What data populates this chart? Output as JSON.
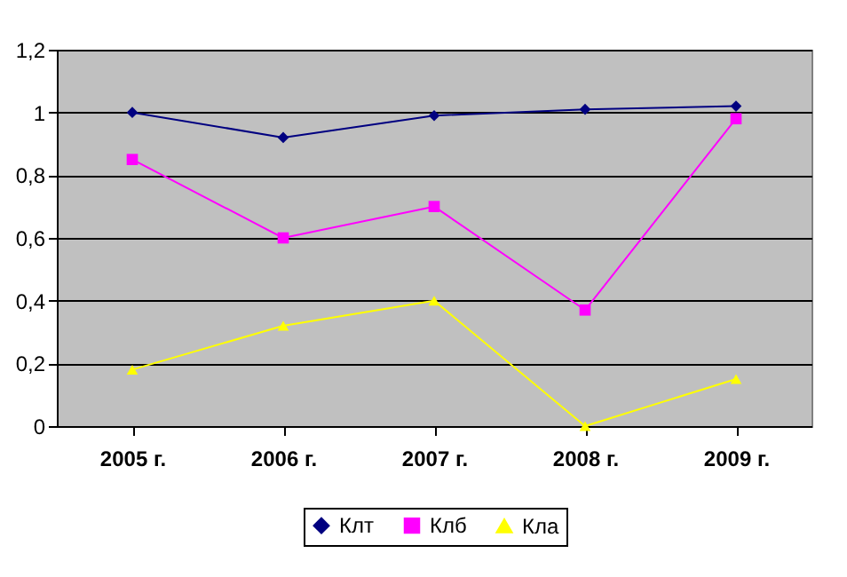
{
  "chart_data": {
    "type": "line",
    "categories": [
      "2005 г.",
      "2006 г.",
      "2007 г.",
      "2008 г.",
      "2009 г."
    ],
    "series": [
      {
        "name": "Клт",
        "color": "#000080",
        "marker": "diamond",
        "values": [
          1.0,
          0.92,
          0.99,
          1.01,
          1.02
        ]
      },
      {
        "name": "Клб",
        "color": "#ff00ff",
        "marker": "square",
        "values": [
          0.85,
          0.6,
          0.7,
          0.37,
          0.98
        ]
      },
      {
        "name": "Кла",
        "color": "#ffff00",
        "marker": "triangle",
        "values": [
          0.18,
          0.32,
          0.4,
          0.0,
          0.15
        ]
      }
    ],
    "ylim": [
      0,
      1.2
    ],
    "yticks": [
      0,
      {
        "value": 0.2,
        "label": "0,2"
      },
      {
        "value": 0.4,
        "label": "0,4"
      },
      {
        "value": 0.6,
        "label": "0,6"
      },
      {
        "value": 0.8,
        "label": "0,8"
      },
      1,
      {
        "value": 1.2,
        "label": "1,2"
      }
    ],
    "grid": "y",
    "legend": "bottom",
    "line_style": "solid"
  }
}
